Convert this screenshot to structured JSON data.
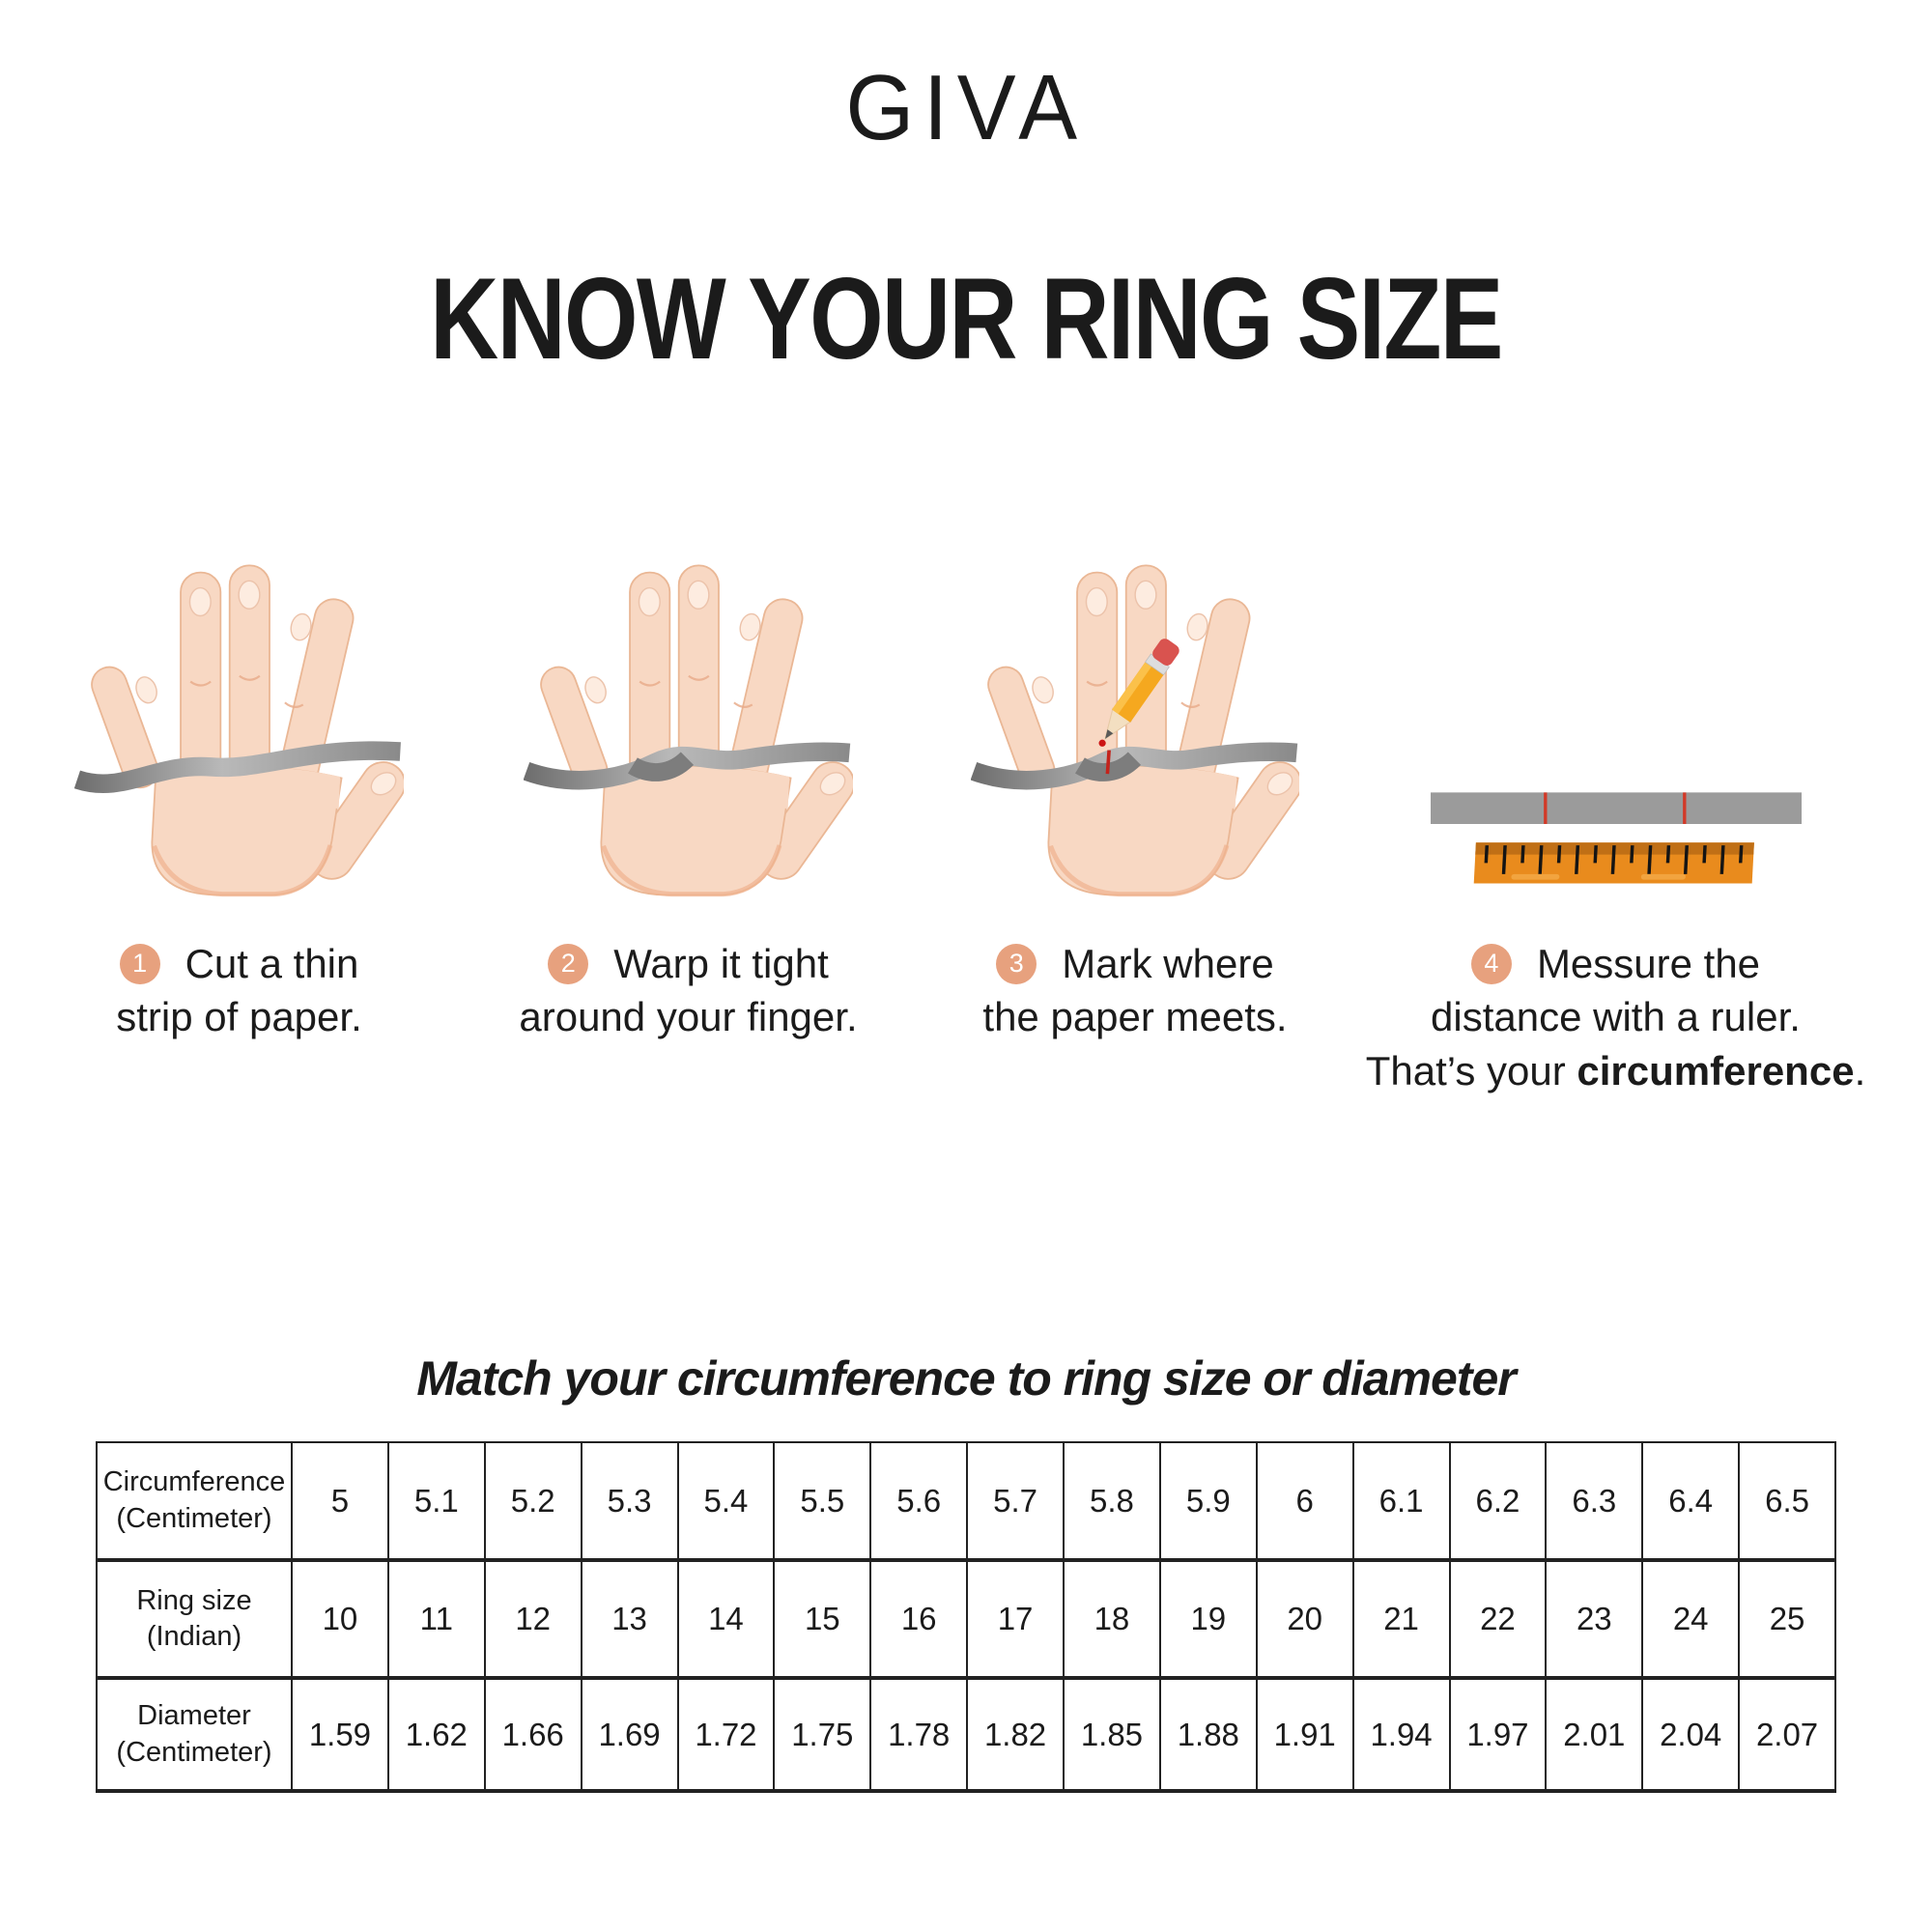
{
  "brand": {
    "logo_text": "GIVA"
  },
  "page_title": "KNOW YOUR RING SIZE",
  "steps": [
    {
      "number": "1",
      "line1": "Cut a thin",
      "line2": "strip of paper."
    },
    {
      "number": "2",
      "line1": "Warp it tight",
      "line2": "around your finger."
    },
    {
      "number": "3",
      "line1": "Mark where",
      "line2": "the paper meets."
    },
    {
      "number": "4",
      "line1": "Messure the",
      "line2": "distance with a ruler.",
      "line3_prefix": "That’s your ",
      "line3_bold": "circumference",
      "line3_suffix": "."
    }
  ],
  "table_section": {
    "title": "Match your circumference to ring size or diameter"
  },
  "chart_data": {
    "type": "table",
    "title": "Match your circumference to ring size or diameter",
    "rows": [
      {
        "label_lines": [
          "Circumference",
          "(Centimeter)"
        ],
        "values": [
          "5",
          "5.1",
          "5.2",
          "5.3",
          "5.4",
          "5.5",
          "5.6",
          "5.7",
          "5.8",
          "5.9",
          "6",
          "6.1",
          "6.2",
          "6.3",
          "6.4",
          "6.5"
        ]
      },
      {
        "label_lines": [
          "Ring size",
          "(Indian)"
        ],
        "values": [
          "10",
          "11",
          "12",
          "13",
          "14",
          "15",
          "16",
          "17",
          "18",
          "19",
          "20",
          "21",
          "22",
          "23",
          "24",
          "25"
        ]
      },
      {
        "label_lines": [
          "Diameter",
          "(Centimeter)"
        ],
        "values": [
          "1.59",
          "1.62",
          "1.66",
          "1.69",
          "1.72",
          "1.75",
          "1.78",
          "1.82",
          "1.85",
          "1.88",
          "1.91",
          "1.94",
          "1.97",
          "2.01",
          "2.04",
          "2.07"
        ]
      }
    ]
  },
  "colors": {
    "badge_peach": "#e7a17e",
    "strip_gray": "#8f8f8f",
    "ruler_orange": "#e98b1d",
    "ruler_band": "#c06f15",
    "skin": "#f8d8c3",
    "mark_red": "#c9251c",
    "text": "#1b1b1b"
  }
}
